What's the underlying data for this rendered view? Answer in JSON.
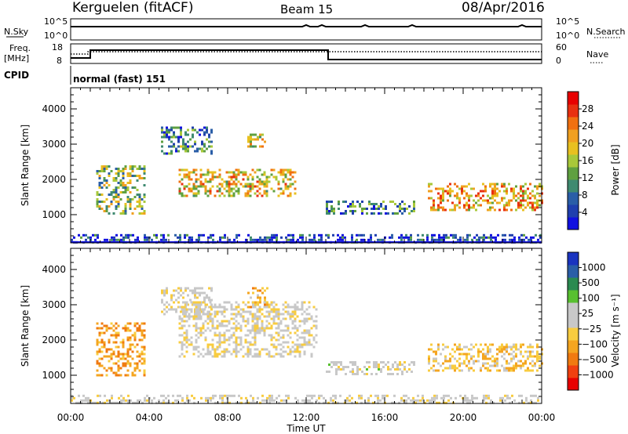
{
  "header": {
    "station": "Kerguelen (fitACF)",
    "beam": "Beam 15",
    "date": "08/Apr/2016"
  },
  "status_panels": {
    "nsky_label": "N.Sky",
    "nsearch_label": "N.Search",
    "sky_ticks": [
      "10^5",
      "10^0"
    ],
    "search_ticks": [
      "10^5",
      "10^0"
    ],
    "freq_label": "Freq.",
    "freq_unit": "[MHz]",
    "freq_ticks": [
      "18",
      "8"
    ],
    "nave_label": "Nave",
    "nave_ticks": [
      "60",
      "0"
    ],
    "cpid_label": "CPID",
    "cpid_value": "normal (fast) 151"
  },
  "colors": {
    "power": [
      "#1010e0",
      "#1f3fae",
      "#2a5ea7",
      "#3f8a70",
      "#5fa040",
      "#a8c83a",
      "#e8c020",
      "#f0a020",
      "#f07010",
      "#e83010",
      "#e80000"
    ],
    "velocity": [
      "#e80000",
      "#f04010",
      "#f07a10",
      "#f4a520",
      "#f8cc40",
      "#c8c8c8",
      "#c8c8c8",
      "#58c030",
      "#2a8a50",
      "#2a5ea7",
      "#1a34c0"
    ]
  },
  "chart_data": [
    {
      "type": "heatmap",
      "title": "",
      "xlabel": "Time UT",
      "ylabel": "Slant Range [km]",
      "x_ticks": [
        "00:00",
        "04:00",
        "08:00",
        "12:00",
        "16:00",
        "20:00",
        "00:00"
      ],
      "y_ticks": [
        "1000",
        "2000",
        "3000",
        "4000"
      ],
      "xlim": [
        0,
        24
      ],
      "ylim": [
        200,
        4600
      ],
      "colorbar_label": "Power [dB]",
      "colorbar_ticks": [
        "4",
        "8",
        "12",
        "16",
        "20",
        "24",
        "28"
      ],
      "colorbar_range": [
        0,
        32
      ],
      "regions": [
        {
          "t": [
            1.3,
            3.8
          ],
          "r": [
            1000,
            2400
          ],
          "level": 0.45
        },
        {
          "t": [
            4.6,
            7.2
          ],
          "r": [
            2700,
            3500
          ],
          "level": 0.3
        },
        {
          "t": [
            5.5,
            11.5
          ],
          "r": [
            1500,
            2300
          ],
          "level": 0.6
        },
        {
          "t": [
            9.0,
            10.0
          ],
          "r": [
            2900,
            3300
          ],
          "level": 0.55
        },
        {
          "t": [
            13.0,
            17.5
          ],
          "r": [
            1000,
            1400
          ],
          "level": 0.3
        },
        {
          "t": [
            18.2,
            24.0
          ],
          "r": [
            1100,
            1900
          ],
          "level": 0.65
        },
        {
          "t": [
            0.0,
            24.0
          ],
          "r": [
            220,
            450
          ],
          "level": 0.15
        }
      ]
    },
    {
      "type": "heatmap",
      "title": "",
      "xlabel": "Time UT",
      "ylabel": "Slant Range [km]",
      "x_ticks": [
        "00:00",
        "04:00",
        "08:00",
        "12:00",
        "16:00",
        "20:00",
        "00:00"
      ],
      "y_ticks": [
        "1000",
        "2000",
        "3000",
        "4000"
      ],
      "xlim": [
        0,
        24
      ],
      "ylim": [
        200,
        4600
      ],
      "colorbar_label": "Velocity [m s⁻¹]",
      "colorbar_ticks": [
        "1000",
        "500",
        "100",
        "25",
        "−25",
        "−100",
        "−500",
        "−1000"
      ],
      "colorbar_range": [
        -1500,
        1500
      ],
      "regions": [
        {
          "t": [
            1.3,
            3.8
          ],
          "r": [
            1000,
            2500
          ],
          "level": -600
        },
        {
          "t": [
            4.6,
            7.2
          ],
          "r": [
            2700,
            3500
          ],
          "level": 0
        },
        {
          "t": [
            5.5,
            12.5
          ],
          "r": [
            1500,
            3100
          ],
          "level": 0
        },
        {
          "t": [
            9.0,
            10.0
          ],
          "r": [
            2900,
            3500
          ],
          "level": -400
        },
        {
          "t": [
            13.0,
            17.5
          ],
          "r": [
            1000,
            1400
          ],
          "level": 80
        },
        {
          "t": [
            18.2,
            24.0
          ],
          "r": [
            1100,
            1900
          ],
          "level": -300
        },
        {
          "t": [
            0.0,
            24.0
          ],
          "r": [
            220,
            450
          ],
          "level": 50
        }
      ]
    }
  ]
}
